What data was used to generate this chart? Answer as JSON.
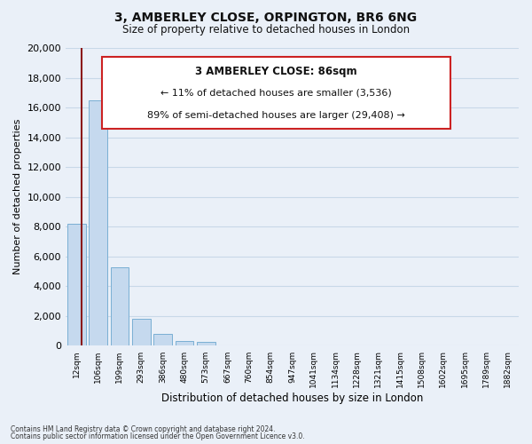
{
  "title": "3, AMBERLEY CLOSE, ORPINGTON, BR6 6NG",
  "subtitle": "Size of property relative to detached houses in London",
  "xlabel": "Distribution of detached houses by size in London",
  "ylabel": "Number of detached properties",
  "bar_labels": [
    "12sqm",
    "106sqm",
    "199sqm",
    "293sqm",
    "386sqm",
    "480sqm",
    "573sqm",
    "667sqm",
    "760sqm",
    "854sqm",
    "947sqm",
    "1041sqm",
    "1134sqm",
    "1228sqm",
    "1321sqm",
    "1415sqm",
    "1508sqm",
    "1602sqm",
    "1695sqm",
    "1789sqm",
    "1882sqm"
  ],
  "bar_values": [
    8200,
    16500,
    5300,
    1800,
    800,
    300,
    280,
    0,
    0,
    0,
    0,
    0,
    0,
    0,
    0,
    0,
    0,
    0,
    0,
    0,
    0
  ],
  "bar_color": "#c5d9ee",
  "bar_edge_color": "#7aafd4",
  "highlight_color": "#8b1a1a",
  "ylim": [
    0,
    20000
  ],
  "yticks": [
    0,
    2000,
    4000,
    6000,
    8000,
    10000,
    12000,
    14000,
    16000,
    18000,
    20000
  ],
  "annotation_title": "3 AMBERLEY CLOSE: 86sqm",
  "annotation_line1": "← 11% of detached houses are smaller (3,536)",
  "annotation_line2": "89% of semi-detached houses are larger (29,408) →",
  "annotation_box_color": "#ffffff",
  "annotation_box_edge": "#cc2222",
  "footer_line1": "Contains HM Land Registry data © Crown copyright and database right 2024.",
  "footer_line2": "Contains public sector information licensed under the Open Government Licence v3.0.",
  "background_color": "#ffffff",
  "grid_color": "#c8d8e8",
  "fig_bg": "#eaf0f8"
}
